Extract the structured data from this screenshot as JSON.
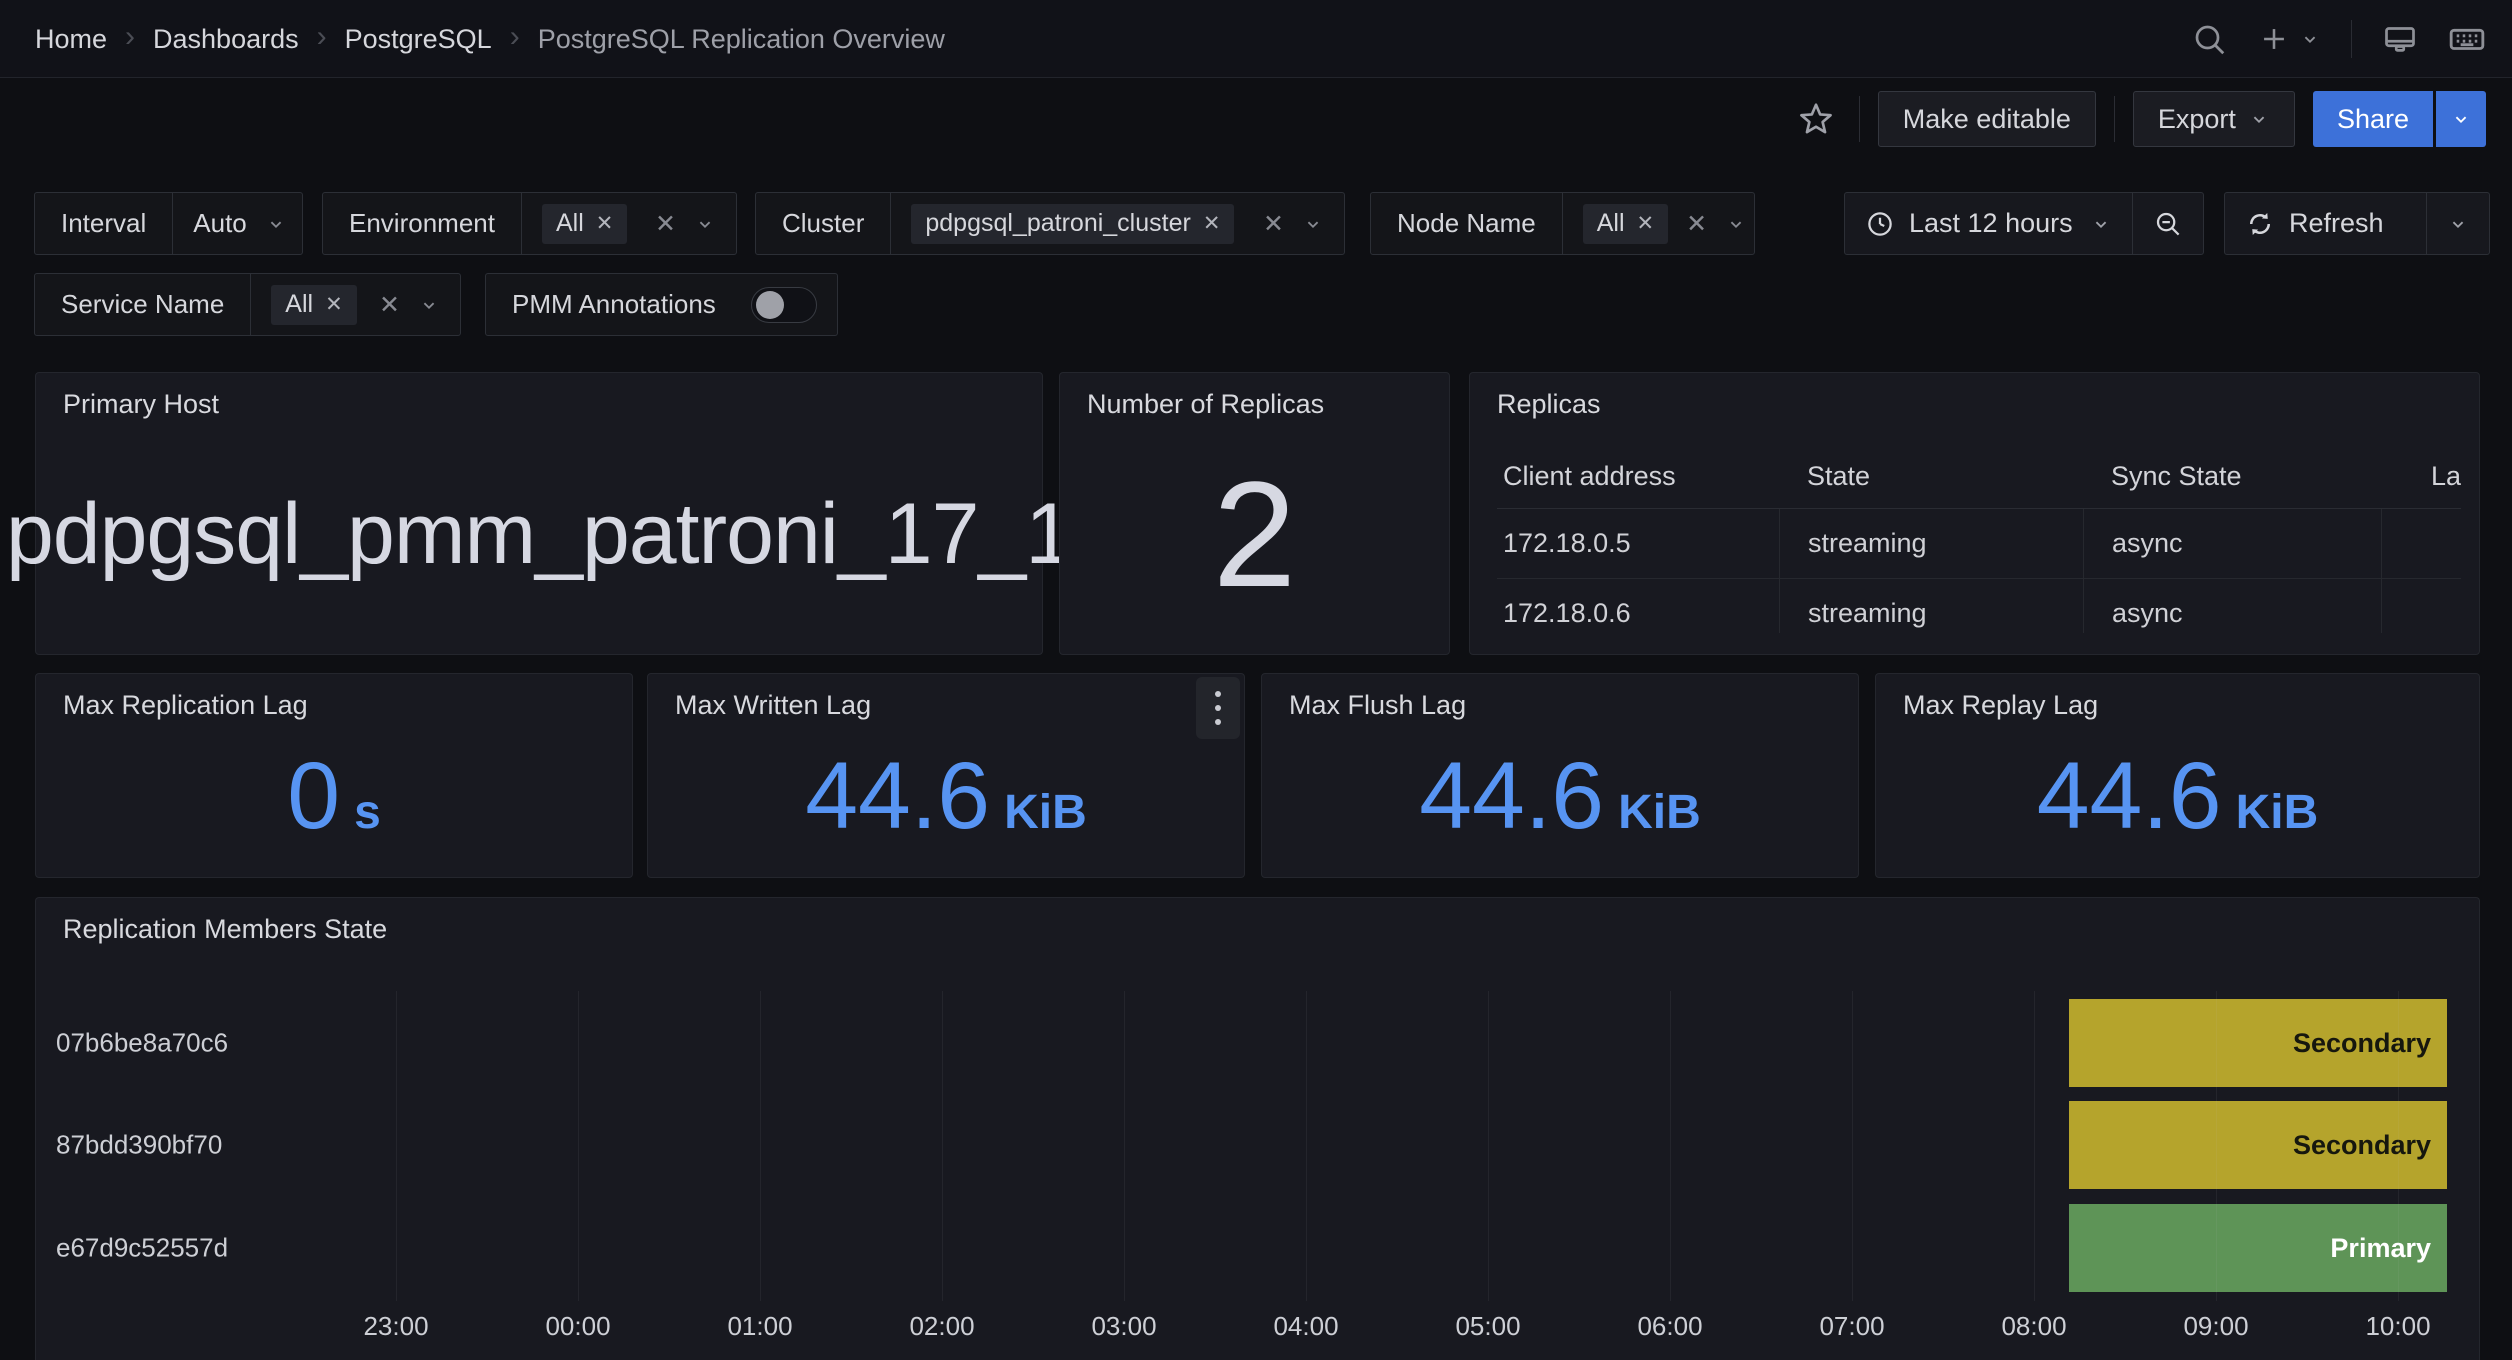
{
  "header": {
    "breadcrumbs": [
      {
        "label": "Home"
      },
      {
        "label": "Dashboards"
      },
      {
        "label": "PostgreSQL"
      },
      {
        "label": "PostgreSQL Replication Overview"
      }
    ]
  },
  "toolbar": {
    "make_editable_label": "Make editable",
    "export_label": "Export",
    "share_label": "Share"
  },
  "filters": {
    "interval": {
      "label": "Interval",
      "value": "Auto"
    },
    "environment": {
      "label": "Environment",
      "chip": "All"
    },
    "cluster": {
      "label": "Cluster",
      "chip": "pdpgsql_patroni_cluster"
    },
    "node_name": {
      "label": "Node Name",
      "chip": "All"
    },
    "service_name": {
      "label": "Service Name",
      "chip": "All"
    },
    "pmm_annotations": {
      "label": "PMM Annotations",
      "enabled": false
    }
  },
  "time_controls": {
    "range_label": "Last 12 hours",
    "refresh_label": "Refresh"
  },
  "panels": {
    "primary_host": {
      "title": "Primary Host",
      "value": "pdpgsql_pmm_patroni_17_1"
    },
    "replica_count": {
      "title": "Number of Replicas",
      "value": "2"
    },
    "replicas_table": {
      "title": "Replicas",
      "columns": [
        "Client address",
        "State",
        "Sync State",
        "La"
      ],
      "rows": [
        [
          "172.18.0.5",
          "streaming",
          "async",
          ""
        ],
        [
          "172.18.0.6",
          "streaming",
          "async",
          ""
        ]
      ]
    },
    "stats": [
      {
        "title": "Max Replication Lag",
        "value": "0",
        "unit": "s"
      },
      {
        "title": "Max Written Lag",
        "value": "44.6",
        "unit": "KiB"
      },
      {
        "title": "Max Flush Lag",
        "value": "44.6",
        "unit": "KiB"
      },
      {
        "title": "Max Replay Lag",
        "value": "44.6",
        "unit": "KiB"
      }
    ],
    "value_color": "#5794f2"
  },
  "chart_data": {
    "type": "state-timeline",
    "title": "Replication Members State",
    "rows": [
      {
        "label": "07b6be8a70c6",
        "state": "Secondary"
      },
      {
        "label": "87bdd390bf70",
        "state": "Secondary"
      },
      {
        "label": "e67d9c52557d",
        "state": "Primary"
      }
    ],
    "x_ticks": [
      "23:00",
      "00:00",
      "01:00",
      "02:00",
      "03:00",
      "04:00",
      "05:00",
      "06:00",
      "07:00",
      "08:00",
      "09:00",
      "10:00"
    ],
    "state_colors": {
      "Secondary": "#b5a42c",
      "Primary": "#5e9457"
    },
    "state_text_colors": {
      "Secondary": "#16170e",
      "Primary": "#ffffff"
    },
    "layout": {
      "grid": true,
      "bar_region_frac": [
        0.823,
        0.993
      ],
      "axis": "time",
      "legend": false
    }
  }
}
